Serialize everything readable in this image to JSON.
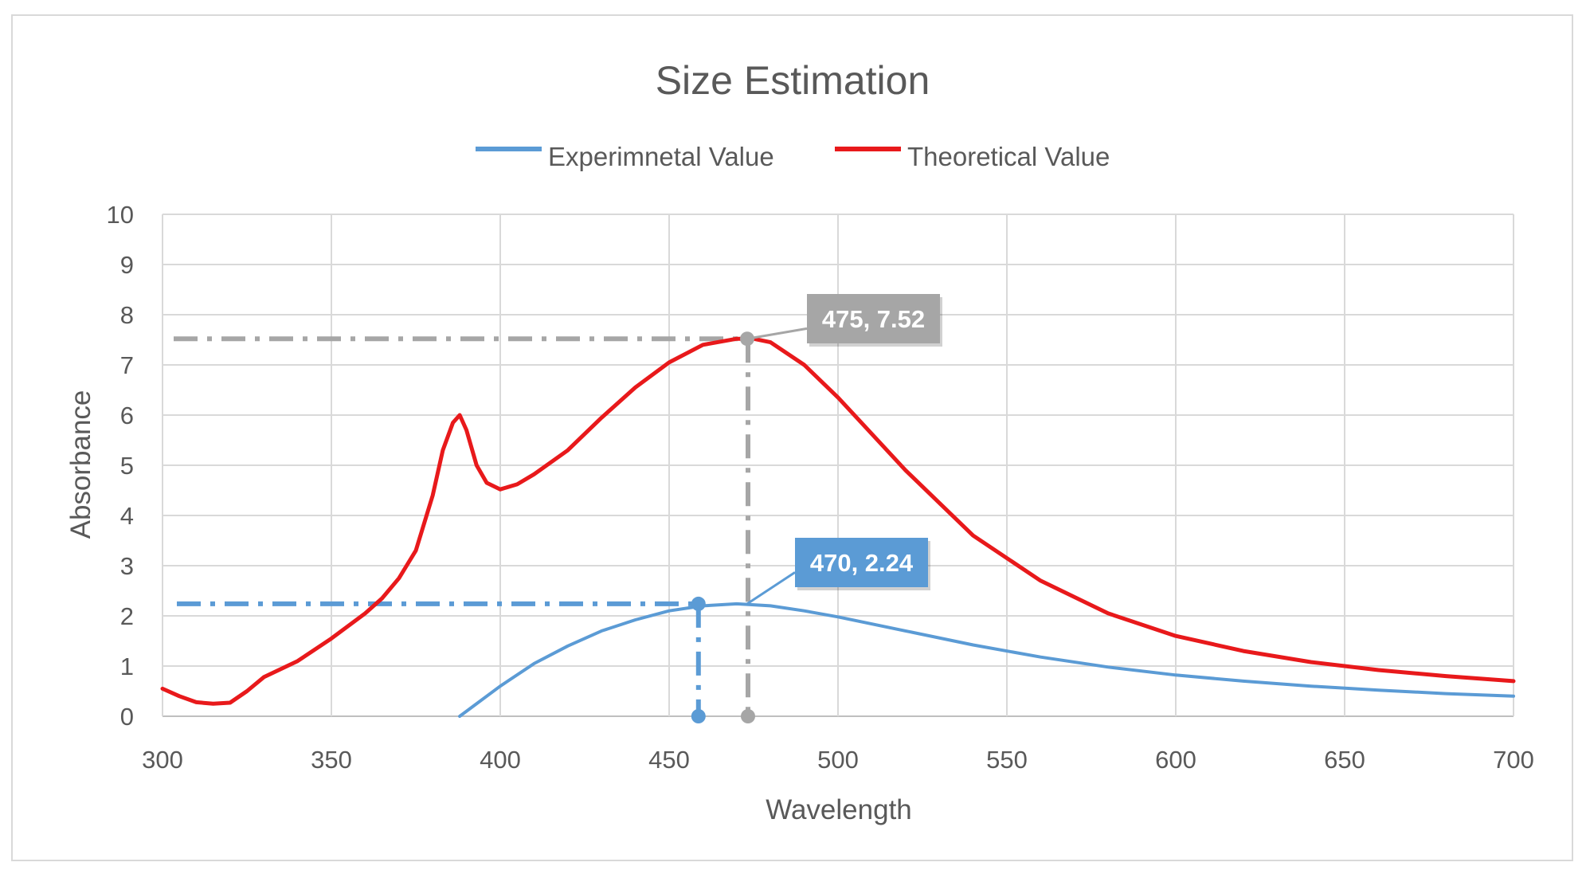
{
  "chart_data": {
    "type": "line",
    "title": "Size Estimation",
    "xlabel": "Wavelength",
    "ylabel": "Absorbance",
    "xlim": [
      300,
      700
    ],
    "ylim": [
      0,
      10
    ],
    "xticks": [
      300,
      350,
      400,
      450,
      500,
      550,
      600,
      650,
      700
    ],
    "yticks": [
      0,
      1,
      2,
      3,
      4,
      5,
      6,
      7,
      8,
      9,
      10
    ],
    "grid": true,
    "legend_position": "top",
    "series": [
      {
        "name": "Experimnetal Value",
        "color": "#5b9bd5",
        "x": [
          388,
          392,
          400,
          410,
          420,
          430,
          440,
          450,
          460,
          470,
          480,
          490,
          500,
          520,
          540,
          560,
          580,
          600,
          620,
          640,
          660,
          680,
          700
        ],
        "y": [
          0.0,
          0.2,
          0.6,
          1.05,
          1.4,
          1.7,
          1.92,
          2.1,
          2.2,
          2.24,
          2.2,
          2.1,
          1.98,
          1.7,
          1.42,
          1.18,
          0.98,
          0.82,
          0.7,
          0.6,
          0.52,
          0.45,
          0.4
        ]
      },
      {
        "name": "Theoretical Value",
        "color": "#e8191b",
        "x": [
          300,
          305,
          310,
          315,
          320,
          325,
          330,
          340,
          350,
          360,
          365,
          370,
          375,
          380,
          383,
          386,
          388,
          390,
          393,
          396,
          400,
          405,
          410,
          420,
          430,
          440,
          450,
          460,
          470,
          475,
          480,
          490,
          500,
          520,
          540,
          560,
          580,
          600,
          620,
          640,
          660,
          680,
          700
        ],
        "y": [
          0.55,
          0.4,
          0.28,
          0.25,
          0.27,
          0.5,
          0.78,
          1.1,
          1.55,
          2.05,
          2.35,
          2.75,
          3.3,
          4.4,
          5.3,
          5.85,
          6.0,
          5.7,
          5.0,
          4.65,
          4.52,
          4.62,
          4.82,
          5.3,
          5.95,
          6.55,
          7.05,
          7.4,
          7.52,
          7.52,
          7.45,
          7.0,
          6.35,
          4.9,
          3.6,
          2.7,
          2.05,
          1.6,
          1.3,
          1.08,
          0.92,
          0.8,
          0.7
        ]
      }
    ],
    "annotations": [
      {
        "label": "475, 7.52",
        "x": 475,
        "y": 7.52,
        "color": "#a6a6a6",
        "series": "Theoretical Value"
      },
      {
        "label": "470, 2.24",
        "x": 470,
        "y": 2.24,
        "color": "#5b9bd5",
        "series": "Experimnetal Value"
      }
    ]
  }
}
